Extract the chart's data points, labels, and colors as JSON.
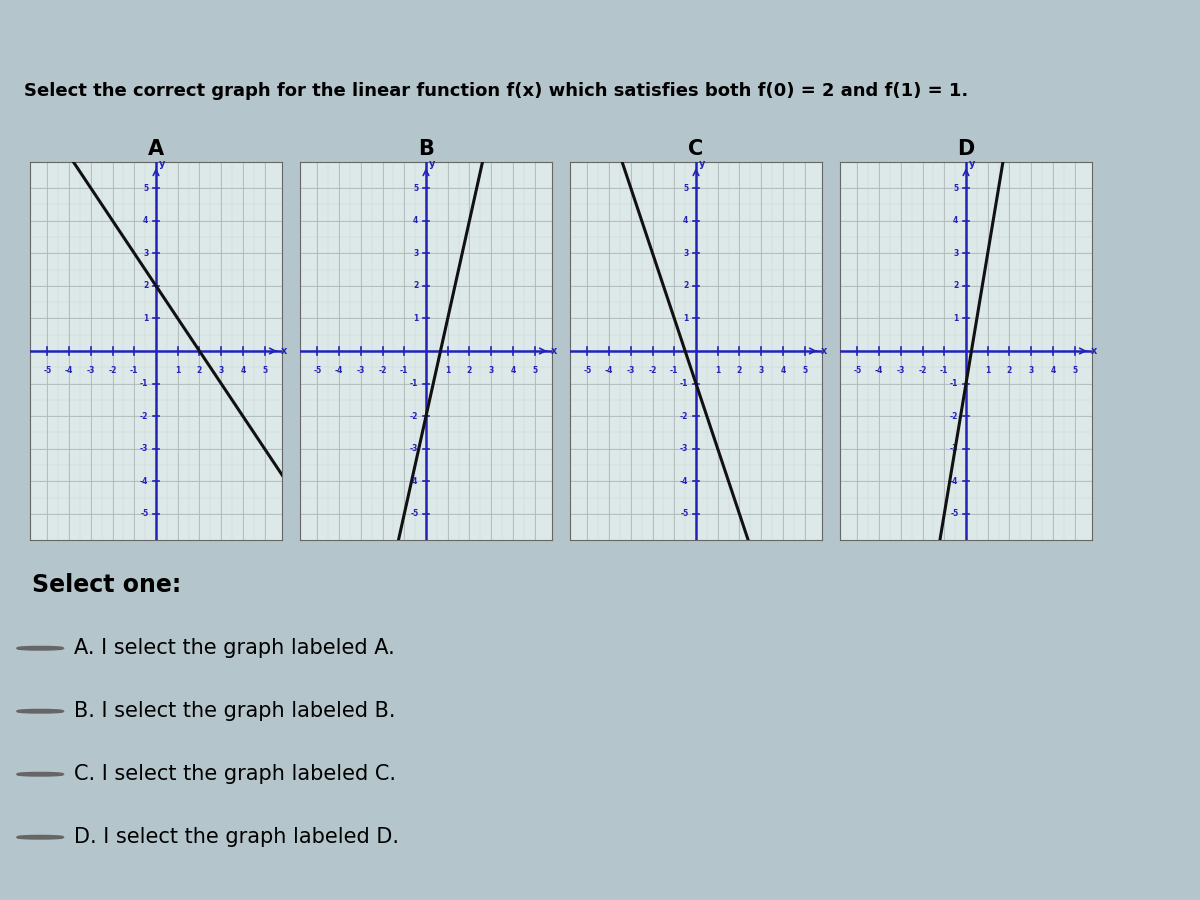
{
  "title": "Select the correct graph for the linear function f(x) which satisfies both f(0) = 2 and f(1) = 1.",
  "bg_color": "#b5c5cc",
  "header_color": "#9aadb5",
  "grid_bg": "#dde8e8",
  "grid_color": "#b0b8b8",
  "axis_color": "#2222bb",
  "line_color": "#111111",
  "label_color": "#2222bb",
  "graphs": [
    {
      "label": "A",
      "slope": -1,
      "intercept": 2
    },
    {
      "label": "B",
      "slope": 3,
      "intercept": -2
    },
    {
      "label": "C",
      "slope": -2,
      "intercept": -1
    },
    {
      "label": "D",
      "slope": 4,
      "intercept": -1
    }
  ],
  "axis_range": [
    -5,
    5
  ],
  "tick_vals": [
    -5,
    -4,
    -3,
    -2,
    -1,
    1,
    2,
    3,
    4,
    5
  ],
  "select_one_text": "Select one:",
  "options": [
    "A. I select the graph labeled A.",
    "B. I select the graph labeled B.",
    "C. I select the graph labeled C.",
    "D. I select the graph labeled D."
  ],
  "option_font_size": 15,
  "title_font_size": 13
}
